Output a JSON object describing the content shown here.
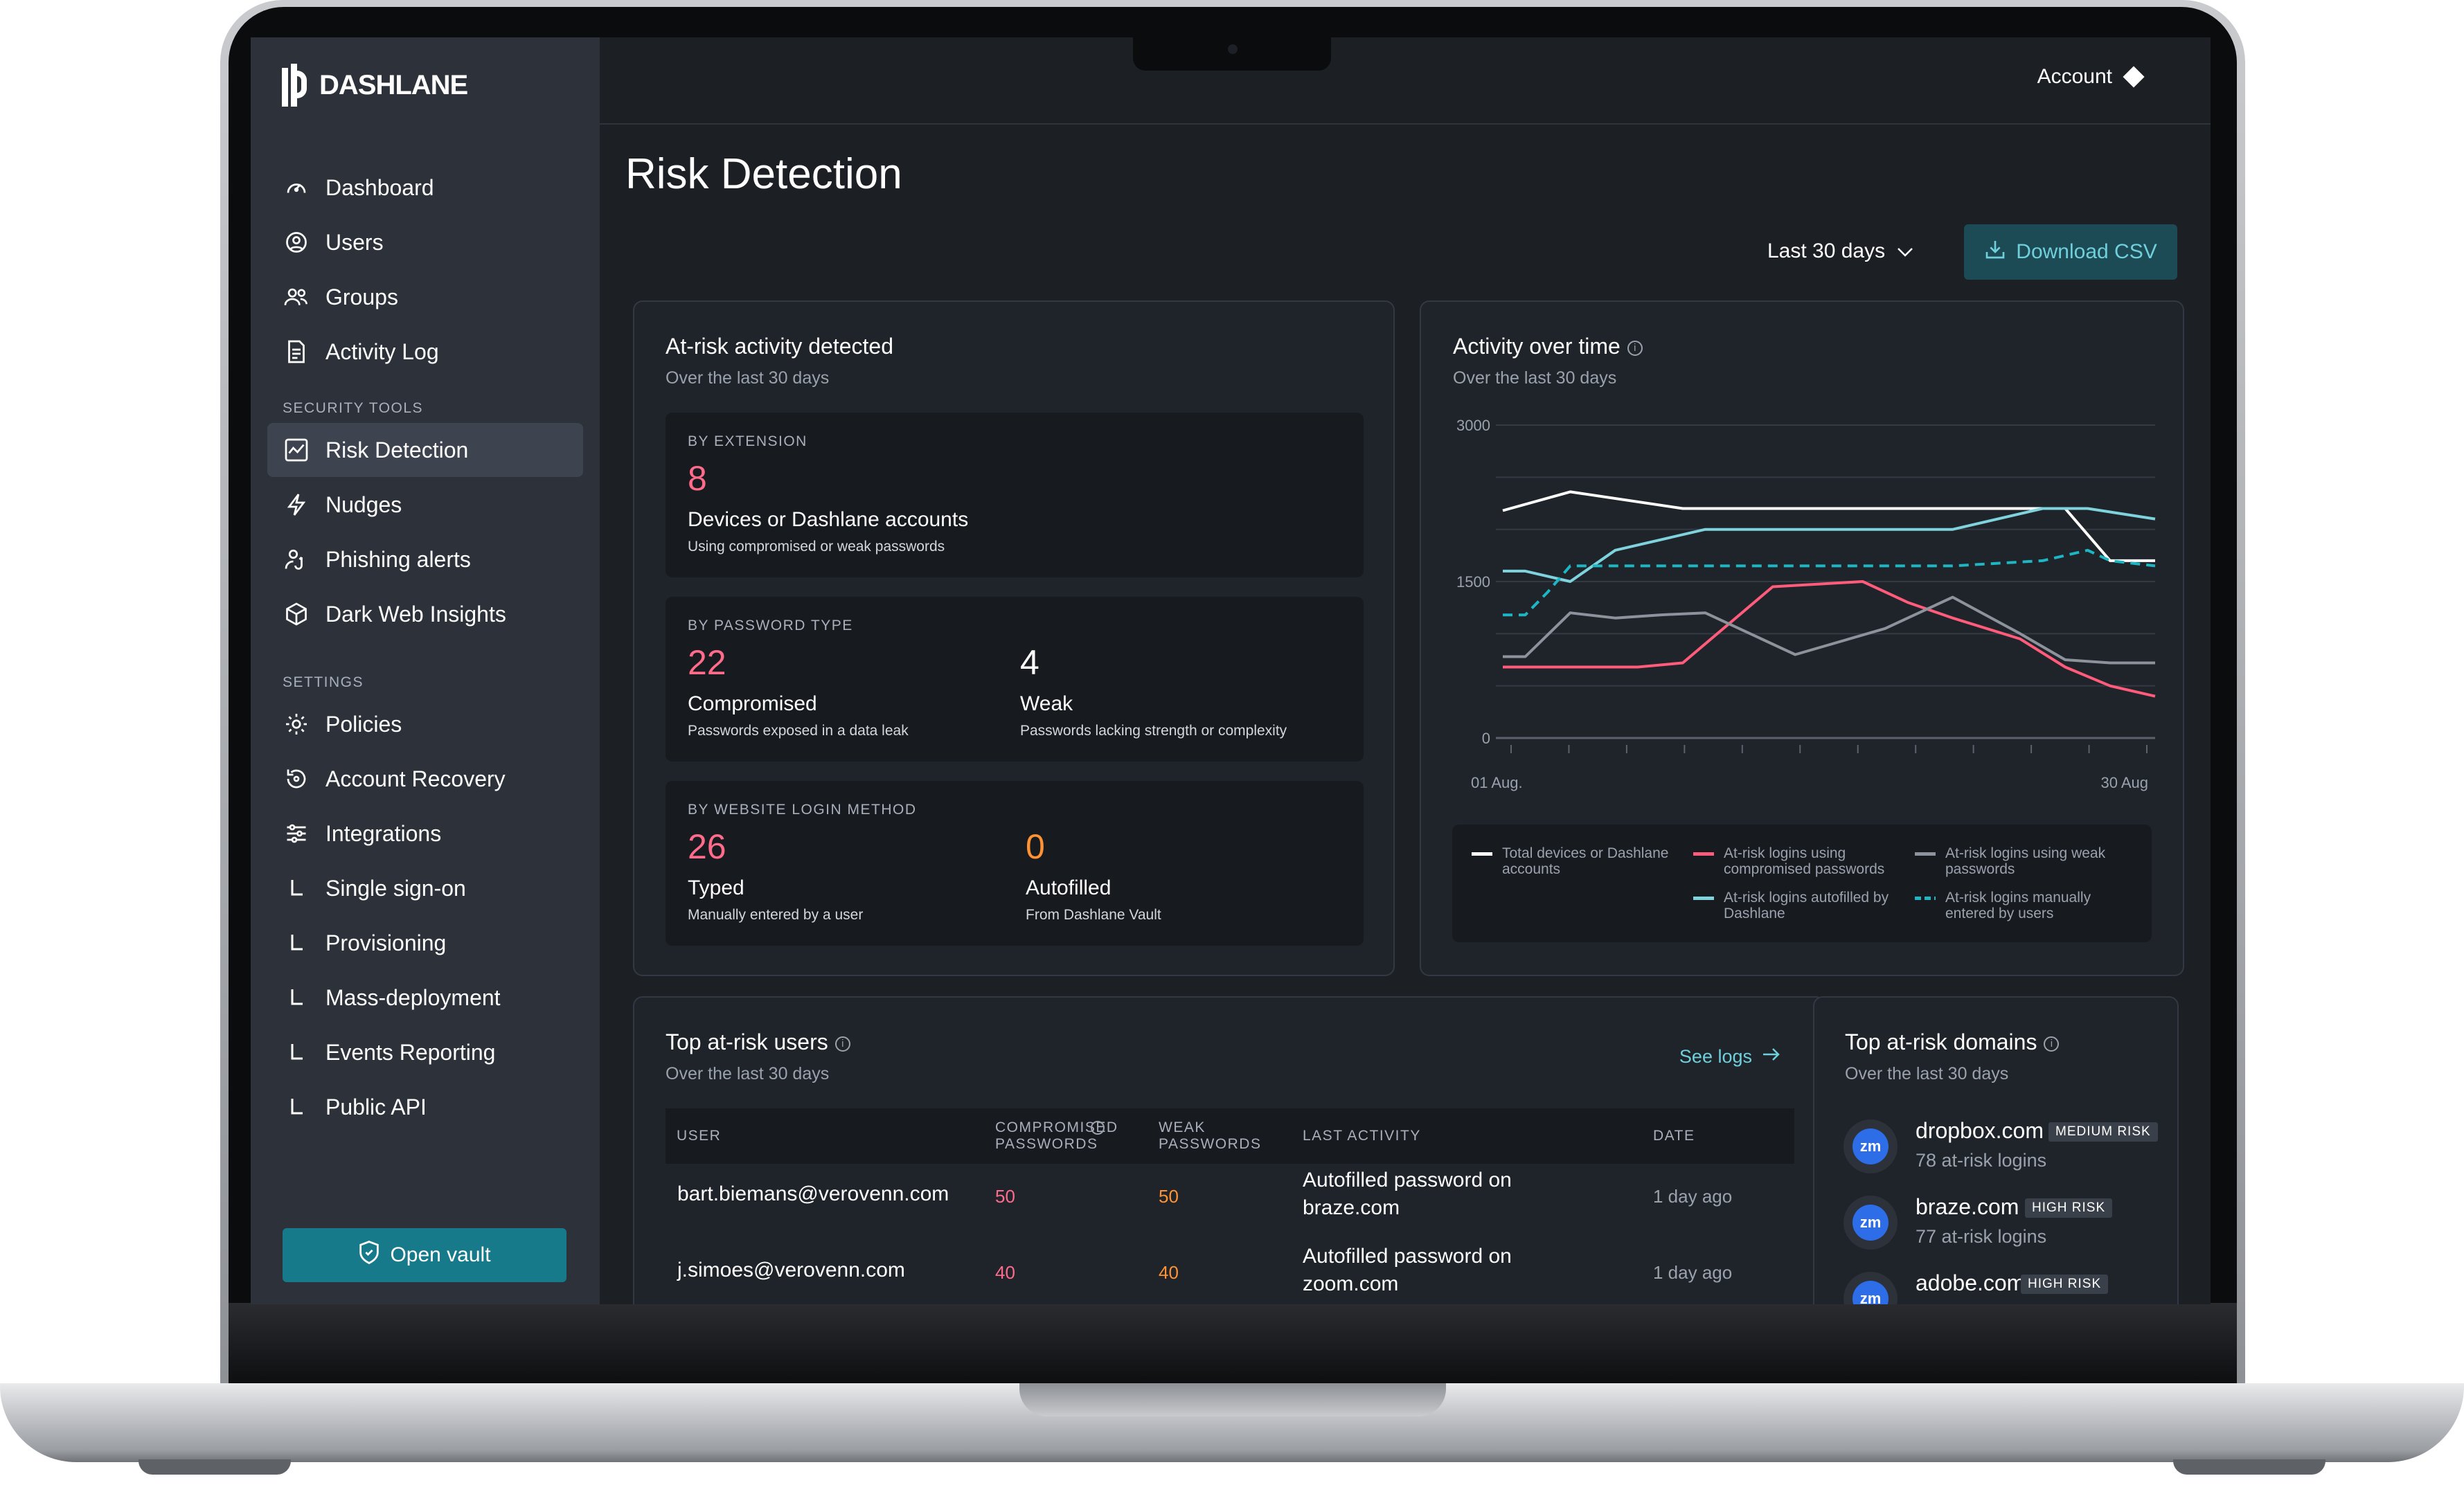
{
  "brand": {
    "name": "DASHLANE"
  },
  "account": {
    "label": "Account"
  },
  "sidebar": {
    "main_items": [
      {
        "label": "Dashboard",
        "icon": "gauge-icon"
      },
      {
        "label": "Users",
        "icon": "user-circle-icon"
      },
      {
        "label": "Groups",
        "icon": "group-icon"
      },
      {
        "label": "Activity Log",
        "icon": "document-icon"
      }
    ],
    "security_heading": "SECURITY TOOLS",
    "security_items": [
      {
        "label": "Risk Detection",
        "icon": "risk-chart-icon",
        "active": true
      },
      {
        "label": "Nudges",
        "icon": "lightning-icon"
      },
      {
        "label": "Phishing alerts",
        "icon": "phishing-icon"
      },
      {
        "label": "Dark Web Insights",
        "icon": "cube-icon"
      }
    ],
    "settings_heading": "SETTINGS",
    "settings_items": [
      {
        "label": "Policies",
        "icon": "gear-icon"
      },
      {
        "label": "Account Recovery",
        "icon": "recovery-icon"
      },
      {
        "label": "Integrations",
        "icon": "sliders-icon"
      },
      {
        "label": "Single sign-on",
        "icon": "corner-icon"
      },
      {
        "label": "Provisioning",
        "icon": "corner-icon"
      },
      {
        "label": "Mass-deployment",
        "icon": "corner-icon"
      },
      {
        "label": "Events Reporting",
        "icon": "corner-icon"
      },
      {
        "label": "Public API",
        "icon": "corner-icon"
      }
    ],
    "vault_button": "Open vault"
  },
  "page": {
    "title": "Risk Detection",
    "range_label": "Last 30 days",
    "download_label": "Download CSV"
  },
  "at_risk": {
    "title": "At-risk activity detected",
    "subtitle": "Over the last 30 days",
    "extension": {
      "heading": "BY EXTENSION",
      "value": "8",
      "label": "Devices or Dashlane accounts",
      "desc": "Using compromised or weak passwords"
    },
    "password_type": {
      "heading": "BY PASSWORD TYPE",
      "compromised": {
        "value": "22",
        "label": "Compromised",
        "desc": "Passwords exposed in a data leak"
      },
      "weak": {
        "value": "4",
        "label": "Weak",
        "desc": "Passwords lacking strength or complexity"
      }
    },
    "login_method": {
      "heading": "BY WEBSITE LOGIN METHOD",
      "typed": {
        "value": "26",
        "label": "Typed",
        "desc": "Manually entered by a user"
      },
      "autofilled": {
        "value": "0",
        "label": "Autofilled",
        "desc": "From Dashlane Vault"
      }
    }
  },
  "activity": {
    "title": "Activity over time",
    "subtitle": "Over the last 30 days",
    "legend": [
      {
        "label": "Total devices or Dashlane accounts",
        "color": "#ffffff",
        "style": "solid"
      },
      {
        "label": "At-risk logins using compromised passwords",
        "color": "#ff5c7c",
        "style": "solid"
      },
      {
        "label": "At-risk logins using weak passwords",
        "color": "#8d939c",
        "style": "solid"
      },
      {
        "label": "At-risk logins autofilled by Dashlane",
        "color": "#7fd3dc",
        "style": "solid"
      },
      {
        "label": "At-risk logins manually entered by users",
        "color": "#1fb6c4",
        "style": "dashed"
      }
    ]
  },
  "chart_data": {
    "type": "line",
    "x": [
      1,
      4,
      9,
      13,
      17,
      21,
      24,
      26,
      28,
      30
    ],
    "xtick_labels": [
      "01 Aug.",
      "30 Aug"
    ],
    "yticks": [
      0,
      1500,
      3000
    ],
    "ylim": [
      0,
      3000
    ],
    "grid": true,
    "series": [
      {
        "name": "Total devices or Dashlane accounts",
        "color": "#ffffff",
        "dash": false,
        "x": [
          1,
          4,
          9,
          13,
          17,
          21,
          24,
          26,
          28,
          30
        ],
        "values": [
          2180,
          2360,
          2200,
          2200,
          2200,
          2200,
          2200,
          2200,
          1700,
          1700
        ]
      },
      {
        "name": "At-risk logins using compromised passwords",
        "color": "#ff5c7c",
        "dash": false,
        "x": [
          1,
          4,
          7,
          9,
          13,
          17,
          19,
          21,
          24,
          26,
          28,
          30
        ],
        "values": [
          680,
          680,
          680,
          720,
          1450,
          1500,
          1300,
          1150,
          950,
          680,
          500,
          400
        ]
      },
      {
        "name": "At-risk logins using weak passwords",
        "color": "#8d939c",
        "dash": false,
        "x": [
          1,
          2,
          4,
          6,
          8,
          10,
          14,
          18,
          21,
          24,
          26,
          28,
          30
        ],
        "values": [
          780,
          780,
          1200,
          1150,
          1180,
          1200,
          800,
          1050,
          1350,
          1000,
          750,
          720,
          720
        ]
      },
      {
        "name": "At-risk logins autofilled by Dashlane",
        "color": "#7fd3dc",
        "dash": false,
        "x": [
          1,
          2,
          4,
          6,
          10,
          13,
          17,
          21,
          25,
          27,
          30
        ],
        "values": [
          1600,
          1600,
          1500,
          1800,
          2000,
          2000,
          2000,
          2000,
          2200,
          2200,
          2100
        ]
      },
      {
        "name": "At-risk logins manually entered by users",
        "color": "#1fb6c4",
        "dash": true,
        "x": [
          1,
          2,
          3,
          4,
          5,
          9,
          13,
          17,
          21,
          25,
          27,
          28,
          30
        ],
        "values": [
          1180,
          1180,
          1400,
          1650,
          1650,
          1650,
          1650,
          1650,
          1650,
          1700,
          1800,
          1700,
          1650
        ]
      }
    ]
  },
  "top_users": {
    "title": "Top at-risk users",
    "subtitle": "Over the last 30 days",
    "see_logs": "See logs",
    "columns": [
      "USER",
      "COMPROMISED PASSWORDS",
      "WEAK PASSWORDS",
      "LAST ACTIVITY",
      "DATE"
    ],
    "rows": [
      {
        "user": "bart.biemans@verovenn.com",
        "compromised": "50",
        "weak": "50",
        "activity": "Autofilled password on braze.com",
        "date": "1 day ago"
      },
      {
        "user": "j.simoes@verovenn.com",
        "compromised": "40",
        "weak": "40",
        "activity": "Autofilled password on zoom.com",
        "date": "1 day ago"
      }
    ]
  },
  "top_domains": {
    "title": "Top at-risk domains",
    "subtitle": "Over the last 30 days",
    "items": [
      {
        "domain": "dropbox.com",
        "risk": "MEDIUM RISK",
        "count": "78 at-risk logins",
        "icon_text": "zm"
      },
      {
        "domain": "braze.com",
        "risk": "HIGH RISK",
        "count": "77 at-risk logins",
        "icon_text": "zm"
      },
      {
        "domain": "adobe.com",
        "risk": "HIGH RISK",
        "count": "",
        "icon_text": "zm"
      }
    ]
  }
}
